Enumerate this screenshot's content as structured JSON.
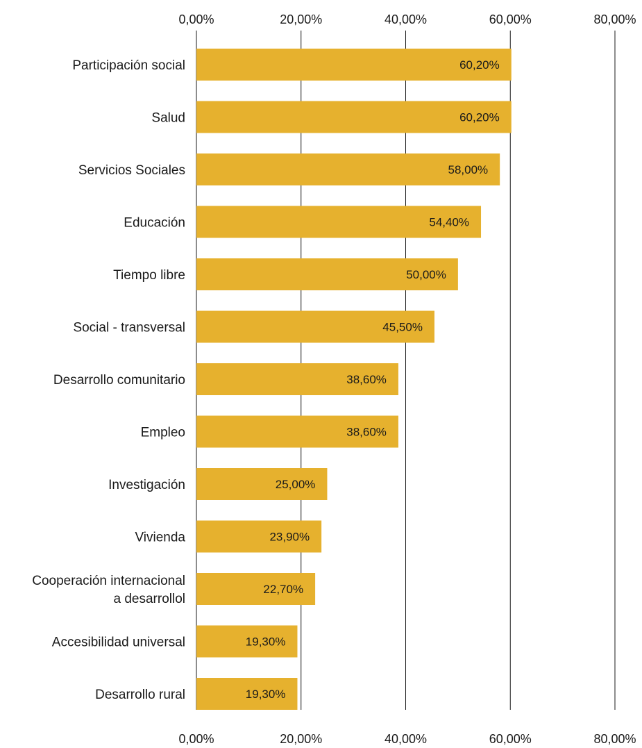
{
  "chart_data": {
    "type": "bar",
    "orientation": "horizontal",
    "categories": [
      "Participación social",
      "Salud",
      "Servicios Sociales",
      "Educación",
      "Tiempo libre",
      "Social - transversal",
      "Desarrollo comunitario",
      "Empleo",
      "Investigación",
      "Vivienda",
      "Cooperación internacional\na desarrollol",
      "Accesibilidad universal",
      "Desarrollo rural"
    ],
    "values": [
      60.2,
      60.2,
      58.0,
      54.4,
      50.0,
      45.5,
      38.6,
      38.6,
      25.0,
      23.9,
      22.7,
      19.3,
      19.3
    ],
    "value_labels": [
      "60,20%",
      "60,20%",
      "58,00%",
      "54,40%",
      "50,00%",
      "45,50%",
      "38,60%",
      "38,60%",
      "25,00%",
      "23,90%",
      "22,70%",
      "19,30%",
      "19,30%"
    ],
    "xlim": [
      0,
      80
    ],
    "xticks": [
      0,
      20,
      40,
      60,
      80
    ],
    "xtick_labels": [
      "0,00%",
      "20,00%",
      "40,00%",
      "60,00%",
      "80,00%"
    ],
    "axis_labels_position": "top-and-bottom",
    "grid": true,
    "bar_color": "#E6B12E",
    "title": "",
    "xlabel": "",
    "ylabel": ""
  }
}
